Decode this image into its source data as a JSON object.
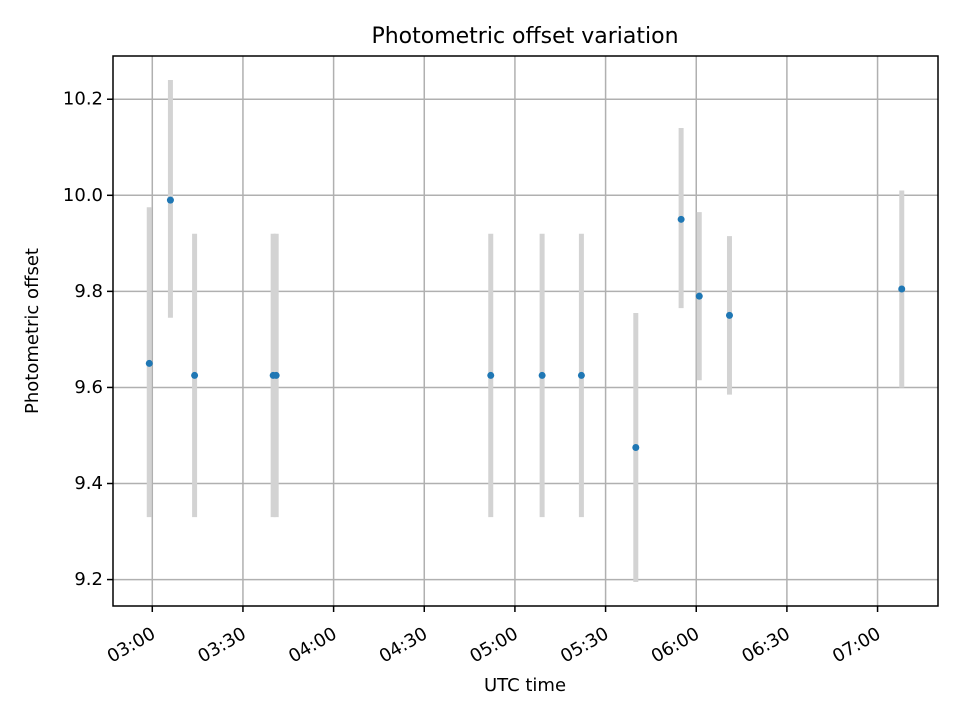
{
  "chart_data": {
    "type": "scatter",
    "title": "Photometric offset variation",
    "xlabel": "UTC time",
    "ylabel": "Photometric offset",
    "grid": true,
    "x_ticks": [
      "03:00",
      "03:30",
      "04:00",
      "04:30",
      "05:00",
      "05:30",
      "06:00",
      "06:30",
      "07:00"
    ],
    "y_ticks": [
      "9.2",
      "9.4",
      "9.6",
      "9.8",
      "10.0",
      "10.2"
    ],
    "xlim": [
      "02:47",
      "07:20"
    ],
    "ylim": [
      9.145,
      10.29
    ],
    "colors": {
      "point": "#1f77b4",
      "errorbar": "#d3d3d3"
    },
    "points": [
      {
        "time": "02:59",
        "value": 9.65,
        "err_low": 9.33,
        "err_high": 9.975
      },
      {
        "time": "03:06",
        "value": 9.99,
        "err_low": 9.745,
        "err_high": 10.24
      },
      {
        "time": "03:14",
        "value": 9.625,
        "err_low": 9.33,
        "err_high": 9.92
      },
      {
        "time": "03:40",
        "value": 9.625,
        "err_low": 9.33,
        "err_high": 9.92
      },
      {
        "time": "03:41",
        "value": 9.625,
        "err_low": 9.33,
        "err_high": 9.92
      },
      {
        "time": "04:52",
        "value": 9.625,
        "err_low": 9.33,
        "err_high": 9.92
      },
      {
        "time": "05:09",
        "value": 9.625,
        "err_low": 9.33,
        "err_high": 9.92
      },
      {
        "time": "05:22",
        "value": 9.625,
        "err_low": 9.33,
        "err_high": 9.92
      },
      {
        "time": "05:40",
        "value": 9.475,
        "err_low": 9.195,
        "err_high": 9.755
      },
      {
        "time": "05:55",
        "value": 9.95,
        "err_low": 9.765,
        "err_high": 10.14
      },
      {
        "time": "06:01",
        "value": 9.79,
        "err_low": 9.615,
        "err_high": 9.965
      },
      {
        "time": "06:11",
        "value": 9.75,
        "err_low": 9.585,
        "err_high": 9.915
      },
      {
        "time": "07:08",
        "value": 9.805,
        "err_low": 9.6,
        "err_high": 10.01
      }
    ]
  }
}
